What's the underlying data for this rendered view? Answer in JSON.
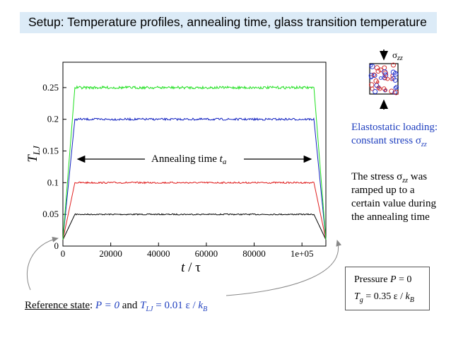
{
  "slide": {
    "title": "Setup: Temperature profiles, annealing time, glass transition temperature",
    "colors": {
      "title_bg": "#dcebf7",
      "accent_blue": "#1f3fbf"
    }
  },
  "chart_data": {
    "type": "line",
    "xlabel_main": "t",
    "xlabel_sep": "/",
    "xlabel_unit": "τ",
    "ylabel_main": "T",
    "ylabel_sub": "LJ",
    "xlim": [
      0,
      110000
    ],
    "ylim": [
      0,
      0.29
    ],
    "x_ticks": [
      0,
      20000,
      40000,
      60000,
      80000,
      100000
    ],
    "x_tick_labels": [
      "0",
      "20000",
      "40000",
      "60000",
      "80000",
      "1e+05"
    ],
    "y_ticks": [
      0,
      0.05,
      0.1,
      0.15,
      0.2,
      0.25
    ],
    "y_tick_labels": [
      "0",
      "0.05",
      "0.1",
      "0.15",
      "0.2",
      "0.25"
    ],
    "grid": false,
    "series": [
      {
        "color": "#000000",
        "x": [
          0,
          5000,
          105000,
          110000
        ],
        "y": [
          0.01,
          0.05,
          0.05,
          0.01
        ]
      },
      {
        "color": "#e02020",
        "x": [
          0,
          5000,
          105000,
          110000
        ],
        "y": [
          0.01,
          0.1,
          0.1,
          0.01
        ]
      },
      {
        "color": "#1020c0",
        "x": [
          0,
          5000,
          105000,
          110000
        ],
        "y": [
          0.01,
          0.2,
          0.2,
          0.01
        ]
      },
      {
        "color": "#20e020",
        "x": [
          0,
          5000,
          105000,
          110000
        ],
        "y": [
          0.01,
          0.25,
          0.25,
          0.01
        ]
      }
    ],
    "annotation": {
      "text": "Annealing time",
      "var": "t",
      "sub": "a"
    }
  },
  "sidebar": {
    "stress_symbol": "σ",
    "stress_sub": "zz",
    "loading_line1": "Elastostatic loading:",
    "loading_line2_pre": "constant stress ",
    "loading_line2_sym": "σ",
    "loading_line2_sub": "zz",
    "ramp_line1_pre": "The stress ",
    "ramp_line1_sym": "σ",
    "ramp_line1_sub": "zz",
    "ramp_line1_post": " was",
    "ramp_line2": "ramped up to a",
    "ramp_line3": "certain value during",
    "ramp_line4": "the annealing time"
  },
  "pressure_box": {
    "line1_pre": "Pressure ",
    "line1_var": "P",
    "line1_post": " = 0",
    "tg_var": "T",
    "tg_sub": "g",
    "tg_mid": " = 0.35 ε / ",
    "tg_k": "k",
    "tg_ksub": "B"
  },
  "reference": {
    "label": "Reference state",
    "colon": ": ",
    "p_part": "P = 0",
    "and": " and ",
    "t_var": "T",
    "t_sub": "LJ",
    "t_rest": " = 0.01 ε / ",
    "k": "k",
    "ksub": "B"
  }
}
